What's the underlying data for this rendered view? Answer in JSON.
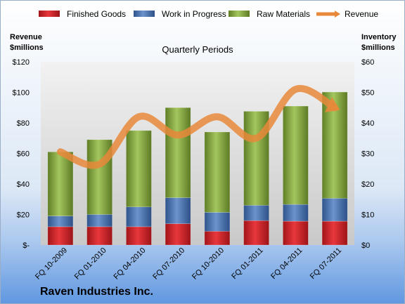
{
  "chart_data": {
    "type": "bar",
    "stacked": true,
    "title": "Quarterly Periods",
    "company": "Raven Industries Inc.",
    "categories": [
      "FQ 10-2009",
      "FQ 01-2010",
      "FQ 04-2010",
      "FQ 07-2010",
      "FQ 10-2010",
      "FQ 01-2011",
      "FQ 04-2011",
      "FQ 07-2011"
    ],
    "series": [
      {
        "name": "Finished Goods",
        "color": "#d9262b",
        "axis": "right",
        "values": [
          6.0,
          6.0,
          6.0,
          7.0,
          4.5,
          8.0,
          7.8,
          7.8
        ]
      },
      {
        "name": "Work in Progress",
        "color": "#4e79b8",
        "axis": "right",
        "values": [
          3.5,
          4.0,
          6.5,
          8.5,
          6.2,
          5.0,
          5.5,
          7.5
        ]
      },
      {
        "name": "Raw Materials",
        "color": "#8fb24a",
        "axis": "right",
        "values": [
          21.0,
          24.5,
          25.0,
          29.5,
          26.3,
          30.8,
          32.2,
          34.8
        ]
      },
      {
        "name": "Revenue",
        "color": "#e8883a",
        "type": "line",
        "axis": "left",
        "values": [
          61,
          53,
          84,
          72,
          84,
          70,
          102,
          90
        ]
      }
    ],
    "left_axis": {
      "title_lines": [
        "Revenue",
        "$millions"
      ],
      "ylim": [
        0,
        120
      ],
      "tick_values": [
        0,
        20,
        40,
        60,
        80,
        100,
        120
      ],
      "tick_labels": [
        "$-",
        "$20",
        "$40",
        "$60",
        "$80",
        "$100",
        "$120"
      ]
    },
    "right_axis": {
      "title_lines": [
        "Inventory",
        "$millions"
      ],
      "ylim": [
        0,
        60
      ],
      "tick_values": [
        0,
        10,
        20,
        30,
        40,
        50,
        60
      ],
      "tick_labels": [
        "$0",
        "$10",
        "$20",
        "$30",
        "$40",
        "$50",
        "$60"
      ]
    },
    "legend_position": "top",
    "grid": false
  }
}
